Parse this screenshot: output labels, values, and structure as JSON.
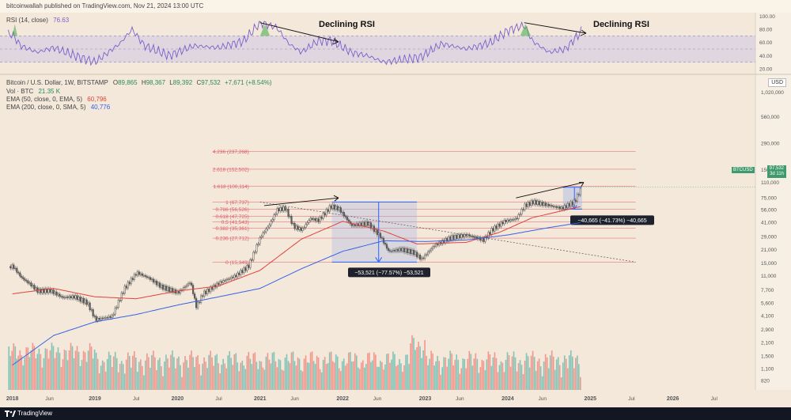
{
  "publish_line": "bitcoinwallah published on TradingView.com, Nov 21, 2024 13:00 UTC",
  "footer": {
    "brand": "TradingView"
  },
  "rsi_header": {
    "name": "RSI (14, close)",
    "value": "76.63"
  },
  "price_header": {
    "symbol": "Bitcoin / U.S. Dollar, 1W, BITSTAMP",
    "o_label": "O",
    "o": "89,865",
    "h_label": "H",
    "h": "98,367",
    "l_label": "L",
    "l": "89,392",
    "c_label": "C",
    "c": "97,532",
    "change": "+7,671 (+8.54%)"
  },
  "vol_header": {
    "name": "Vol · BTC",
    "value": "21.35 K"
  },
  "ema50_header": {
    "name": "EMA (50, close, 0, EMA, 5)",
    "value": "60,796"
  },
  "ema200_header": {
    "name": "EMA (200, close, 0, SMA, 5)",
    "value": "40,776"
  },
  "currency": "USD",
  "ticker": {
    "name": "BTCUSD",
    "price": "97,532",
    "countdown": "3d 11h"
  },
  "colors": {
    "background": "#f3e8d9",
    "fib_line": "#e05a6a",
    "ema50": "#e0433b",
    "ema200": "#3562e6",
    "rsi_line": "#7b5fc9",
    "rsi_band": "#c8c0e8",
    "candle_up": "#26a69a",
    "candle_down": "#ef5350",
    "candle_body": "#5a5a5a",
    "measure_fill": "#a8b8e6",
    "measure_line": "#2962ff"
  },
  "annotations": [
    {
      "text": "Declining RSI",
      "position": "rsi-left"
    },
    {
      "text": "Declining RSI",
      "position": "rsi-right"
    }
  ],
  "measure_boxes": [
    {
      "label": "−53,521 (−77.57%) −53,521"
    },
    {
      "label": "−40,665 (−41.73%) −40,665"
    }
  ],
  "chart_data": {
    "type": "line",
    "title": "Bitcoin / U.S. Dollar, 1W, BITSTAMP",
    "y_scale": "log",
    "x_ticks": [
      "2018",
      "Jun",
      "2019",
      "Jul",
      "2020",
      "Jul",
      "2021",
      "Jun",
      "2022",
      "Jun",
      "2023",
      "Jun",
      "2024",
      "Jun",
      "2025",
      "Jul",
      "2026",
      "Jul"
    ],
    "y_ticks": [
      "1,020,000",
      "560,000",
      "290,000",
      "150,000",
      "110,000",
      "75,000",
      "56,000",
      "41,000",
      "29,000",
      "21,000",
      "15,000",
      "11,000",
      "7,700",
      "5,600",
      "4,100",
      "2,900",
      "2,100",
      "1,500",
      "1,100",
      "820"
    ],
    "rsi_ticks": [
      "100.00",
      "80.00",
      "60.00",
      "40.00",
      "20.00"
    ],
    "fib_levels": [
      {
        "label": "4.236",
        "value": 237268,
        "text": "4.236 (237,268)"
      },
      {
        "label": "2.618",
        "value": 152502,
        "text": "2.618 (152,502)"
      },
      {
        "label": "1.618",
        "value": 100114,
        "text": "1.618 (100,114)"
      },
      {
        "label": "1",
        "value": 67737,
        "text": "1 (67,737)"
      },
      {
        "label": "0.786",
        "value": 56526,
        "text": "0.786 (56,526)"
      },
      {
        "label": "0.618",
        "value": 47725,
        "text": "0.618 (47,725)"
      },
      {
        "label": "0.5",
        "value": 41543,
        "text": "0.5 (41,543)"
      },
      {
        "label": "0.382",
        "value": 35361,
        "text": "0.382 (35,361)"
      },
      {
        "label": "0.236",
        "value": 27712,
        "text": "0.236 (27,712)"
      },
      {
        "label": "0",
        "value": 15349,
        "text": "0 (15,349)"
      }
    ],
    "series": [
      {
        "name": "BTCUSD",
        "x": [
          2018.0,
          2018.1,
          2018.2,
          2018.3,
          2018.45,
          2018.6,
          2018.75,
          2018.9,
          2019.0,
          2019.2,
          2019.35,
          2019.5,
          2019.65,
          2019.8,
          2020.0,
          2020.15,
          2020.22,
          2020.3,
          2020.5,
          2020.7,
          2020.85,
          2021.0,
          2021.1,
          2021.2,
          2021.3,
          2021.4,
          2021.5,
          2021.6,
          2021.7,
          2021.85,
          2021.95,
          2022.1,
          2022.3,
          2022.45,
          2022.55,
          2022.7,
          2022.85,
          2022.95,
          2023.1,
          2023.3,
          2023.5,
          2023.7,
          2023.8,
          2023.95,
          2024.1,
          2024.2,
          2024.3,
          2024.5,
          2024.65,
          2024.8,
          2024.89
        ],
        "y": [
          13800,
          10500,
          9000,
          7500,
          7600,
          6400,
          6500,
          5600,
          3700,
          4000,
          8000,
          11800,
          10300,
          8300,
          7200,
          9400,
          5100,
          7000,
          9200,
          11000,
          13800,
          29000,
          38000,
          56000,
          58000,
          37000,
          34000,
          45000,
          43000,
          61000,
          57000,
          38000,
          40000,
          29000,
          20000,
          21000,
          19500,
          16500,
          23000,
          28000,
          30000,
          26500,
          34000,
          42000,
          45000,
          62000,
          68000,
          62000,
          58000,
          68000,
          97532
        ]
      },
      {
        "name": "EMA (50)",
        "x": [
          2018.0,
          2018.5,
          2019.0,
          2019.5,
          2020.0,
          2020.5,
          2021.0,
          2021.5,
          2022.0,
          2022.5,
          2022.9,
          2023.5,
          2023.9,
          2024.3,
          2024.89
        ],
        "y": [
          7000,
          8000,
          6500,
          6200,
          7500,
          8500,
          12500,
          27000,
          42000,
          33000,
          24000,
          25000,
          32000,
          46000,
          60796
        ]
      },
      {
        "name": "EMA (200)",
        "x": [
          2018.0,
          2018.5,
          2019.0,
          2019.5,
          2020.0,
          2020.5,
          2021.0,
          2021.5,
          2022.0,
          2022.5,
          2023.0,
          2023.5,
          2024.0,
          2024.5,
          2024.89
        ],
        "y": [
          1200,
          2500,
          3500,
          4200,
          5300,
          6500,
          8000,
          13000,
          20000,
          26000,
          25500,
          26500,
          30000,
          36000,
          40776
        ]
      }
    ],
    "volume": {
      "name": "Vol · BTC",
      "last": "21.35 K"
    },
    "rsi": {
      "name": "RSI (14, close)",
      "last": 76.63,
      "x": [
        2018.0,
        2018.1,
        2018.3,
        2018.5,
        2018.8,
        2019.0,
        2019.3,
        2019.45,
        2019.6,
        2019.9,
        2020.2,
        2020.5,
        2020.8,
        2021.0,
        2021.2,
        2021.35,
        2021.5,
        2021.7,
        2021.87,
        2022.1,
        2022.3,
        2022.5,
        2022.8,
        2022.95,
        2023.2,
        2023.5,
        2023.8,
        2024.0,
        2024.2,
        2024.3,
        2024.5,
        2024.7,
        2024.89
      ],
      "y": [
        72,
        55,
        45,
        52,
        38,
        30,
        58,
        80,
        55,
        40,
        55,
        52,
        62,
        90,
        83,
        58,
        45,
        62,
        63,
        45,
        40,
        30,
        35,
        38,
        58,
        50,
        60,
        78,
        86,
        62,
        45,
        50,
        76.63
      ]
    }
  }
}
